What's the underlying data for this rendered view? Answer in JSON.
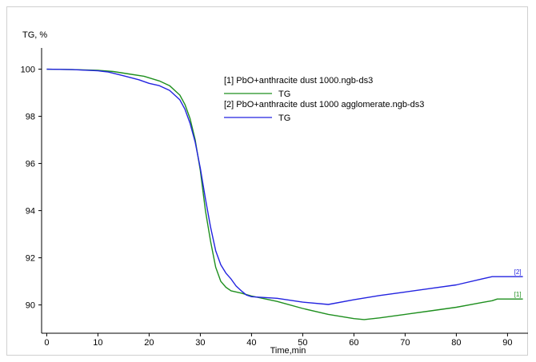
{
  "chart_data": {
    "type": "line",
    "title": "",
    "xlabel": "Time,min",
    "ylabel": "TG, %",
    "xlim": [
      -1,
      94
    ],
    "ylim": [
      88.8,
      100.9
    ],
    "xticks": [
      0,
      10,
      20,
      30,
      40,
      50,
      60,
      70,
      80,
      90
    ],
    "yticks": [
      90,
      92,
      94,
      96,
      98,
      100
    ],
    "grid": false,
    "legend_position": "top-center",
    "series": [
      {
        "name": "[1] PbO+anthracite dust 1000.ngb-ds3",
        "legend_sub": "TG",
        "end_label": "[1]",
        "color": "#1e8f1e",
        "x": [
          0,
          5,
          10,
          13,
          16,
          19,
          22,
          24,
          26,
          27,
          28,
          29,
          30,
          31,
          32,
          33,
          34,
          35,
          36,
          38,
          40,
          45,
          50,
          55,
          60,
          62,
          65,
          70,
          75,
          80,
          85,
          87,
          88,
          90,
          93
        ],
        "y": [
          100,
          99.98,
          99.95,
          99.9,
          99.8,
          99.7,
          99.5,
          99.3,
          98.9,
          98.5,
          97.9,
          97.0,
          95.7,
          94.0,
          92.7,
          91.6,
          91.0,
          90.75,
          90.6,
          90.5,
          90.38,
          90.15,
          89.85,
          89.6,
          89.42,
          89.38,
          89.45,
          89.6,
          89.75,
          89.9,
          90.1,
          90.18,
          90.25,
          90.25,
          90.25
        ]
      },
      {
        "name": "[2] PbO+anthracite dust 1000 agglomerate.ngb-ds3",
        "legend_sub": "TG",
        "end_label": "[2]",
        "color": "#2323e0",
        "x": [
          0,
          5,
          10,
          12,
          15,
          18,
          20,
          22,
          24,
          26,
          27,
          28,
          29,
          30,
          31,
          32,
          33,
          34,
          35,
          36,
          37,
          38,
          39,
          40,
          45,
          50,
          55,
          60,
          65,
          70,
          75,
          80,
          85,
          87,
          90,
          93
        ],
        "y": [
          100,
          99.98,
          99.93,
          99.88,
          99.72,
          99.55,
          99.4,
          99.3,
          99.1,
          98.7,
          98.3,
          97.7,
          96.9,
          95.8,
          94.5,
          93.3,
          92.3,
          91.7,
          91.35,
          91.1,
          90.8,
          90.6,
          90.42,
          90.35,
          90.28,
          90.12,
          90.02,
          90.22,
          90.4,
          90.55,
          90.7,
          90.85,
          91.1,
          91.2,
          91.2,
          91.2
        ]
      }
    ]
  }
}
